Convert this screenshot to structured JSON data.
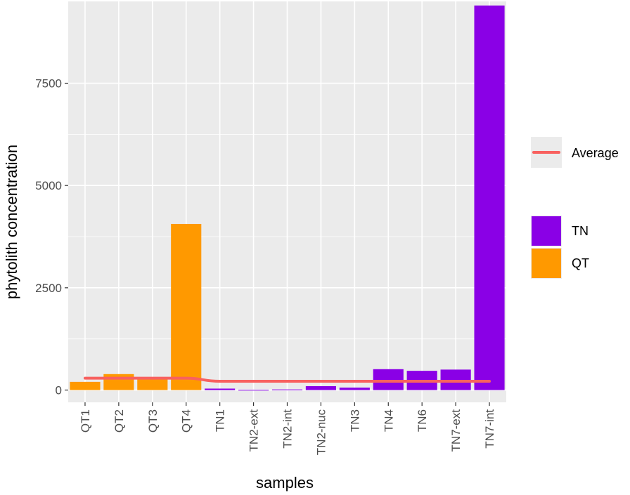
{
  "chart_data": {
    "type": "bar",
    "xlabel": "samples",
    "ylabel": "phytolith concentration",
    "ylim": [
      -300,
      9500
    ],
    "yticks": [
      0,
      2500,
      5000,
      7500
    ],
    "ytick_labels": [
      "0",
      "2500",
      "5000",
      "7500"
    ],
    "categories": [
      "QT1",
      "QT2",
      "QT3",
      "QT4",
      "TN1",
      "TN2-ext",
      "TN2-int",
      "TN2-nuc",
      "TN3",
      "TN4",
      "TN6",
      "TN7-ext",
      "TN7-int"
    ],
    "values": [
      200,
      390,
      280,
      4060,
      35,
      5,
      15,
      95,
      60,
      510,
      470,
      500,
      9400
    ],
    "bar_groups": [
      "QT",
      "QT",
      "QT",
      "QT",
      "TN",
      "TN",
      "TN",
      "TN",
      "TN",
      "TN",
      "TN",
      "TN",
      "TN"
    ],
    "groups": [
      {
        "name": "TN",
        "color": "#8a00e6"
      },
      {
        "name": "QT",
        "color": "#ff9900"
      }
    ],
    "line_series": {
      "name": "Average",
      "color": "#f8615f",
      "values": [
        290,
        290,
        290,
        290,
        215,
        215,
        215,
        215,
        215,
        215,
        215,
        215,
        215
      ]
    },
    "grid": true,
    "legend_position": "right",
    "panel_background": "#ebebeb",
    "grid_color": "#ffffff"
  }
}
